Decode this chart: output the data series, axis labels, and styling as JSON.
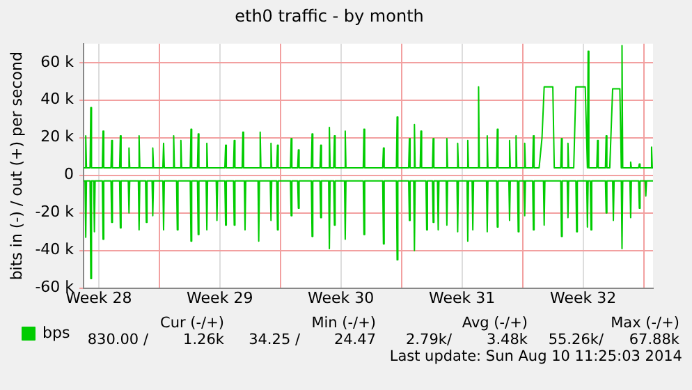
{
  "chart_data": {
    "type": "line",
    "title": "eth0 traffic - by month",
    "ylabel": "bits in (-) / out (+) per second",
    "xlim": [
      "2014-07-08T15:00",
      "2014-08-10T13:00"
    ],
    "xticks": [
      {
        "value": "2014-07-09T12:00",
        "label": "Week 28"
      },
      {
        "value": "2014-07-13",
        "label": null
      },
      {
        "value": "2014-07-16T12:00",
        "label": "Week 29"
      },
      {
        "value": "2014-07-20",
        "label": null
      },
      {
        "value": "2014-07-23T12:00",
        "label": "Week 30"
      },
      {
        "value": "2014-07-27",
        "label": null
      },
      {
        "value": "2014-07-30T12:00",
        "label": "Week 31"
      },
      {
        "value": "2014-08-03",
        "label": null
      },
      {
        "value": "2014-08-06T12:00",
        "label": "Week 32"
      },
      {
        "value": "2014-08-10",
        "label": null
      }
    ],
    "ylim": [
      -60000,
      70000
    ],
    "yticks": [
      {
        "value": -60000,
        "label": "-60 k"
      },
      {
        "value": -40000,
        "label": "-40 k"
      },
      {
        "value": -20000,
        "label": "-20 k"
      },
      {
        "value": 0,
        "label": "0"
      },
      {
        "value": 20000,
        "label": "20 k"
      },
      {
        "value": 40000,
        "label": "40 k"
      },
      {
        "value": 60000,
        "label": "60 k"
      }
    ],
    "grid": true,
    "legend": "bottom left",
    "marker": "none",
    "series": [
      {
        "name": "bps",
        "color": "#00cc00",
        "x": [
          "2014-07-08T15:00",
          "2014-07-08T17:00",
          "2014-07-08T18:00",
          "2014-07-08T19:00",
          "2014-07-09T00:00",
          "2014-07-09T01:00",
          "2014-07-09T02:00",
          "2014-07-09T17:00",
          "2014-07-09T18:00",
          "2014-07-09T19:00",
          "2014-07-10T05:00",
          "2014-07-10T06:00",
          "2014-07-10T07:00",
          "2014-07-10T17:00",
          "2014-07-10T18:00",
          "2014-07-10T19:00",
          "2014-07-11T05:00",
          "2014-07-11T06:00",
          "2014-07-11T07:00",
          "2014-07-11T19:00",
          "2014-07-11T20:00",
          "2014-07-11T21:00",
          "2014-07-12T14:00",
          "2014-07-12T15:00",
          "2014-07-12T16:00",
          "2014-07-13T05:00",
          "2014-07-13T06:00",
          "2014-07-13T07:00",
          "2014-07-13T19:00",
          "2014-07-13T20:00",
          "2014-07-13T21:00",
          "2014-07-14T05:00",
          "2014-07-14T06:00",
          "2014-07-14T07:00",
          "2014-07-14T19:00",
          "2014-07-14T20:00",
          "2014-07-14T21:00",
          "2014-07-15T05:00",
          "2014-07-15T06:00",
          "2014-07-15T07:00",
          "2014-07-15T17:00",
          "2014-07-15T18:00",
          "2014-07-15T19:00",
          "2014-07-16T19:00",
          "2014-07-16T20:00",
          "2014-07-16T21:00",
          "2014-07-17T07:00",
          "2014-07-17T08:00",
          "2014-07-17T09:00",
          "2014-07-17T19:00",
          "2014-07-17T20:00",
          "2014-07-17T21:00",
          "2014-07-18T19:00",
          "2014-07-18T20:00",
          "2014-07-18T21:00",
          "2014-07-19T10:00",
          "2014-07-19T11:00",
          "2014-07-19T12:00",
          "2014-07-19T19:00",
          "2014-07-19T20:00",
          "2014-07-19T21:00",
          "2014-07-20T14:00",
          "2014-07-20T15:00",
          "2014-07-20T16:00",
          "2014-07-21T00:00",
          "2014-07-21T01:00",
          "2014-07-21T02:00",
          "2014-07-21T19:00",
          "2014-07-21T20:00",
          "2014-07-21T21:00",
          "2014-07-22T07:00",
          "2014-07-22T08:00",
          "2014-07-22T09:00",
          "2014-07-22T19:00",
          "2014-07-22T20:00",
          "2014-07-22T21:00",
          "2014-07-23T02:00",
          "2014-07-23T03:00",
          "2014-07-23T04:00",
          "2014-07-23T17:00",
          "2014-07-23T18:00",
          "2014-07-23T19:00",
          "2014-07-24T19:00",
          "2014-07-24T20:00",
          "2014-07-24T21:00",
          "2014-07-25T22:00",
          "2014-07-25T23:00",
          "2014-07-26T00:00",
          "2014-07-26T17:00",
          "2014-07-26T18:00",
          "2014-07-26T19:00",
          "2014-07-27T10:00",
          "2014-07-27T11:00",
          "2014-07-27T12:00",
          "2014-07-27T17:00",
          "2014-07-27T18:00",
          "2014-07-27T19:00",
          "2014-07-28T02:00",
          "2014-07-28T03:00",
          "2014-07-28T04:00",
          "2014-07-28T19:00",
          "2014-07-28T20:00",
          "2014-07-28T21:00",
          "2014-07-29T14:00",
          "2014-07-29T15:00",
          "2014-07-29T16:00",
          "2014-07-30T05:00",
          "2014-07-30T06:00",
          "2014-07-30T07:00",
          "2014-07-30T19:00",
          "2014-07-30T20:00",
          "2014-07-30T21:00",
          "2014-07-31T10:00",
          "2014-07-31T11:00",
          "2014-07-31T12:00",
          "2014-07-31T22:00",
          "2014-07-31T23:00",
          "2014-08-01T00:00",
          "2014-08-01T12:00",
          "2014-08-01T13:00",
          "2014-08-01T14:00",
          "2014-08-02T05:00",
          "2014-08-02T06:00",
          "2014-08-02T07:00",
          "2014-08-02T14:00",
          "2014-08-02T15:00",
          "2014-08-02T16:00",
          "2014-08-03T02:00",
          "2014-08-03T03:00",
          "2014-08-03T04:00",
          "2014-08-03T14:00",
          "2014-08-03T15:00",
          "2014-08-03T16:00",
          "2014-08-03T23:00",
          "2014-08-04T03:00",
          "2014-08-04T06:00",
          "2014-08-04T18:00",
          "2014-08-04T20:00",
          "2014-08-05T05:00",
          "2014-08-05T06:00",
          "2014-08-05T07:00",
          "2014-08-05T14:00",
          "2014-08-05T15:00",
          "2014-08-05T16:00",
          "2014-08-05T23:00",
          "2014-08-06T02:00",
          "2014-08-06T15:00",
          "2014-08-06T18:00",
          "2014-08-06T19:00",
          "2014-08-06T20:00",
          "2014-08-07T07:00",
          "2014-08-07T08:00",
          "2014-08-07T09:00",
          "2014-08-07T19:00",
          "2014-08-07T20:00",
          "2014-08-07T21:00",
          "2014-08-08T01:00",
          "2014-08-08T05:00",
          "2014-08-08T15:00",
          "2014-08-08T17:00",
          "2014-08-08T18:00",
          "2014-08-08T19:00",
          "2014-08-09T05:00",
          "2014-08-09T06:00",
          "2014-08-09T07:00",
          "2014-08-09T17:00",
          "2014-08-09T18:00",
          "2014-08-09T19:00",
          "2014-08-10T10:00",
          "2014-08-10T11:00",
          "2014-08-10T12:00",
          "2014-08-10T13:00"
        ],
        "values": [
          4000,
          4000,
          21000,
          4000,
          4000,
          36000,
          4000,
          4000,
          23500,
          4000,
          4000,
          18500,
          4000,
          4000,
          21000,
          4000,
          4000,
          14500,
          4000,
          4000,
          21000,
          4000,
          4000,
          14500,
          4000,
          4000,
          17000,
          4000,
          4000,
          21000,
          4000,
          4000,
          18500,
          4000,
          4000,
          24500,
          4000,
          4000,
          22000,
          4000,
          4000,
          17000,
          4000,
          4000,
          16000,
          4000,
          4000,
          18500,
          4000,
          4000,
          23000,
          4000,
          4000,
          23000,
          4000,
          4000,
          17000,
          4000,
          4000,
          16000,
          4000,
          4000,
          19500,
          4000,
          4000,
          13500,
          4000,
          4000,
          22000,
          4000,
          4000,
          16000,
          4000,
          4000,
          25500,
          4000,
          4000,
          21000,
          4000,
          4000,
          23500,
          4000,
          4000,
          24500,
          4000,
          4000,
          14500,
          4000,
          4000,
          31000,
          4000,
          4000,
          19500,
          4000,
          4000,
          27000,
          4000,
          4000,
          23500,
          4000,
          4000,
          19500,
          4000,
          4000,
          19500,
          4000,
          4000,
          17000,
          4000,
          4000,
          18500,
          4000,
          4000,
          47000,
          4000,
          4000,
          21000,
          4000,
          4000,
          24500,
          4000,
          4000,
          18500,
          4000,
          4000,
          21000,
          4000,
          4000,
          17000,
          4000,
          4000,
          21000,
          4000,
          4000,
          20000,
          47000,
          47000,
          4000,
          4000,
          19500,
          4000,
          4000,
          17000,
          4000,
          4000,
          47000,
          47000,
          4000,
          66000,
          4000,
          4000,
          18500,
          4000,
          4000,
          21000,
          4000,
          4000,
          46000,
          46000,
          4000,
          69000,
          4000,
          4000,
          7000,
          4000,
          4000,
          6000,
          4000,
          4000,
          15000,
          4000,
          4000
        ]
      },
      {
        "color": "#00cc00",
        "x": [
          "2014-07-08T15:00",
          "2014-07-08T17:00",
          "2014-07-08T18:00",
          "2014-07-08T19:00",
          "2014-07-09T00:00",
          "2014-07-09T01:00",
          "2014-07-09T02:00",
          "2014-07-09T05:00",
          "2014-07-09T06:00",
          "2014-07-09T07:00",
          "2014-07-09T17:00",
          "2014-07-09T18:00",
          "2014-07-09T19:00",
          "2014-07-10T05:00",
          "2014-07-10T06:00",
          "2014-07-10T07:00",
          "2014-07-10T17:00",
          "2014-07-10T18:00",
          "2014-07-10T19:00",
          "2014-07-11T05:00",
          "2014-07-11T06:00",
          "2014-07-11T07:00",
          "2014-07-11T19:00",
          "2014-07-11T20:00",
          "2014-07-11T21:00",
          "2014-07-12T05:00",
          "2014-07-12T06:00",
          "2014-07-12T07:00",
          "2014-07-12T14:00",
          "2014-07-12T15:00",
          "2014-07-12T16:00",
          "2014-07-13T05:00",
          "2014-07-13T06:00",
          "2014-07-13T07:00",
          "2014-07-14T00:00",
          "2014-07-14T01:00",
          "2014-07-14T02:00",
          "2014-07-14T19:00",
          "2014-07-14T20:00",
          "2014-07-14T21:00",
          "2014-07-15T05:00",
          "2014-07-15T06:00",
          "2014-07-15T07:00",
          "2014-07-15T17:00",
          "2014-07-15T18:00",
          "2014-07-15T19:00",
          "2014-07-16T07:00",
          "2014-07-16T08:00",
          "2014-07-16T09:00",
          "2014-07-16T19:00",
          "2014-07-16T20:00",
          "2014-07-16T21:00",
          "2014-07-17T07:00",
          "2014-07-17T08:00",
          "2014-07-17T09:00",
          "2014-07-17T22:00",
          "2014-07-17T23:00",
          "2014-07-18T00:00",
          "2014-07-18T17:00",
          "2014-07-18T18:00",
          "2014-07-18T19:00",
          "2014-07-19T10:00",
          "2014-07-19T11:00",
          "2014-07-19T12:00",
          "2014-07-19T19:00",
          "2014-07-19T20:00",
          "2014-07-19T21:00",
          "2014-07-20T14:00",
          "2014-07-20T15:00",
          "2014-07-20T16:00",
          "2014-07-21T00:00",
          "2014-07-21T01:00",
          "2014-07-21T02:00",
          "2014-07-21T19:00",
          "2014-07-21T20:00",
          "2014-07-21T21:00",
          "2014-07-22T07:00",
          "2014-07-22T08:00",
          "2014-07-22T09:00",
          "2014-07-22T19:00",
          "2014-07-22T20:00",
          "2014-07-22T21:00",
          "2014-07-23T02:00",
          "2014-07-23T03:00",
          "2014-07-23T04:00",
          "2014-07-23T17:00",
          "2014-07-23T18:00",
          "2014-07-23T19:00",
          "2014-07-24T19:00",
          "2014-07-24T20:00",
          "2014-07-24T21:00",
          "2014-07-25T22:00",
          "2014-07-25T23:00",
          "2014-07-26T00:00",
          "2014-07-26T17:00",
          "2014-07-26T18:00",
          "2014-07-26T19:00",
          "2014-07-27T10:00",
          "2014-07-27T11:00",
          "2014-07-27T12:00",
          "2014-07-27T17:00",
          "2014-07-27T18:00",
          "2014-07-27T19:00",
          "2014-07-28T10:00",
          "2014-07-28T11:00",
          "2014-07-28T12:00",
          "2014-07-28T19:00",
          "2014-07-28T20:00",
          "2014-07-28T21:00",
          "2014-07-29T02:00",
          "2014-07-29T03:00",
          "2014-07-29T04:00",
          "2014-07-29T14:00",
          "2014-07-29T15:00",
          "2014-07-29T16:00",
          "2014-07-30T05:00",
          "2014-07-30T06:00",
          "2014-07-30T07:00",
          "2014-07-30T19:00",
          "2014-07-30T20:00",
          "2014-07-30T21:00",
          "2014-07-31T02:00",
          "2014-07-31T03:00",
          "2014-07-31T04:00",
          "2014-07-31T22:00",
          "2014-07-31T23:00",
          "2014-08-01T00:00",
          "2014-08-01T12:00",
          "2014-08-01T13:00",
          "2014-08-01T14:00",
          "2014-08-02T05:00",
          "2014-08-02T06:00",
          "2014-08-02T07:00",
          "2014-08-02T17:00",
          "2014-08-02T18:00",
          "2014-08-02T19:00",
          "2014-08-03T02:00",
          "2014-08-03T03:00",
          "2014-08-03T04:00",
          "2014-08-03T14:00",
          "2014-08-03T15:00",
          "2014-08-03T16:00",
          "2014-08-04T05:00",
          "2014-08-04T06:00",
          "2014-08-04T07:00",
          "2014-08-05T05:00",
          "2014-08-05T06:00",
          "2014-08-05T07:00",
          "2014-08-05T14:00",
          "2014-08-05T15:00",
          "2014-08-05T16:00",
          "2014-08-06T02:00",
          "2014-08-06T03:00",
          "2014-08-06T04:00",
          "2014-08-06T17:00",
          "2014-08-06T18:00",
          "2014-08-06T19:00",
          "2014-08-06T22:00",
          "2014-08-06T23:00",
          "2014-08-07T00:00",
          "2014-08-07T19:00",
          "2014-08-07T20:00",
          "2014-08-07T21:00",
          "2014-08-08T05:00",
          "2014-08-08T06:00",
          "2014-08-08T07:00",
          "2014-08-08T17:00",
          "2014-08-08T18:00",
          "2014-08-08T19:00",
          "2014-08-09T05:00",
          "2014-08-09T06:00",
          "2014-08-09T07:00",
          "2014-08-09T17:00",
          "2014-08-09T18:00",
          "2014-08-09T19:00",
          "2014-08-10T02:00",
          "2014-08-10T03:00",
          "2014-08-10T04:00",
          "2014-08-10T13:00"
        ],
        "values": [
          -3000,
          -3000,
          -33000,
          -3000,
          -3000,
          -55000,
          -3000,
          -3000,
          -30000,
          -3000,
          -3000,
          -34000,
          -3000,
          -3000,
          -25000,
          -3000,
          -3000,
          -28000,
          -3000,
          -3000,
          -20000,
          -3000,
          -3000,
          -29000,
          -3000,
          -3000,
          -25000,
          -3000,
          -3000,
          -21500,
          -3000,
          -3000,
          -29000,
          -3000,
          -3000,
          -29000,
          -3000,
          -3000,
          -35000,
          -3000,
          -3000,
          -31500,
          -3000,
          -3000,
          -29000,
          -3000,
          -3000,
          -24000,
          -3000,
          -3000,
          -26500,
          -3000,
          -3000,
          -26500,
          -3000,
          -3000,
          -29000,
          -3000,
          -3000,
          -35000,
          -3000,
          -3000,
          -24000,
          -3000,
          -3000,
          -29000,
          -3000,
          -3000,
          -21500,
          -3000,
          -3000,
          -17500,
          -3000,
          -3000,
          -32500,
          -3000,
          -3000,
          -22500,
          -3000,
          -3000,
          -39000,
          -3000,
          -3000,
          -26500,
          -3000,
          -3000,
          -34000,
          -3000,
          -3000,
          -31500,
          -3000,
          -3000,
          -36500,
          -3000,
          -3000,
          -45000,
          -3000,
          -3000,
          -24000,
          -3000,
          -3000,
          -40000,
          -3000,
          -3000,
          -29000,
          -3000,
          -3000,
          -25000,
          -3000,
          -3000,
          -29000,
          -3000,
          -3000,
          -26500,
          -3000,
          -3000,
          -30000,
          -3000,
          -3000,
          -35000,
          -3000,
          -3000,
          -29000,
          -3000,
          -3000,
          -30000,
          -3000,
          -3000,
          -27500,
          -3000,
          -3000,
          -24000,
          -3000,
          -3000,
          -30000,
          -3000,
          -3000,
          -21500,
          -3000,
          -3000,
          -29000,
          -3000,
          -3000,
          -26500,
          -3000,
          -3000,
          -32500,
          -3000,
          -3000,
          -22500,
          -3000,
          -3000,
          -30000,
          -3000,
          -3000,
          -27500,
          -3000,
          -3000,
          -29000,
          -3000,
          -3000,
          -20000,
          -3000,
          -3000,
          -24000,
          -3000,
          -3000,
          -39000,
          -3000,
          -3000,
          -22500,
          -3000,
          -3000,
          -17500,
          -3000,
          -3000,
          -11000,
          -3000,
          -3000
        ]
      }
    ],
    "annotations": [
      "Cur (-/+)",
      "Min (-/+)",
      "Avg (-/+)",
      "Max (-/+)",
      "830.00 /",
      "1.26k",
      "34.25 /",
      "24.47",
      "2.79k/",
      "3.48k",
      "55.26k/",
      "67.88k",
      "Last update: Sun Aug 10 11:25:03 2014"
    ]
  }
}
